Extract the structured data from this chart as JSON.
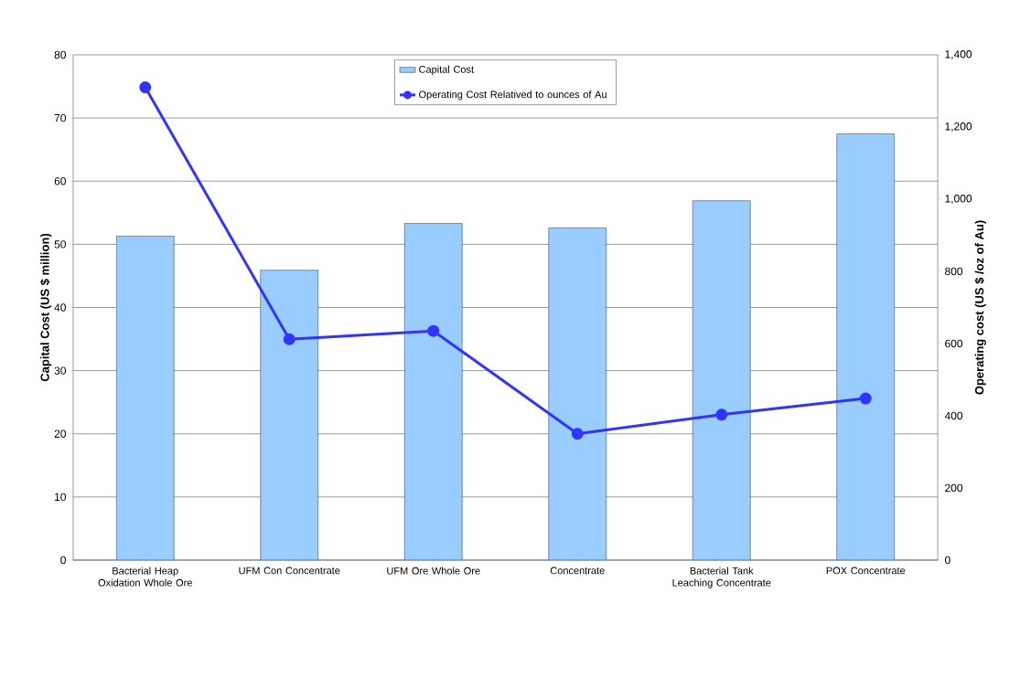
{
  "chart_data": {
    "type": "bar",
    "categories": [
      "Bacterial Heap Oxidation Whole Ore",
      "UFM Con Concentrate",
      "UFM Ore Whole Ore",
      "Concentrate",
      "Bacterial Tank Leaching Concentrate",
      "POX  Concentrate"
    ],
    "series": [
      {
        "name": "Capital Cost",
        "color": "#99ccff",
        "values": [
          51.3,
          45.9,
          53.3,
          52.6,
          56.9,
          67.5
        ]
      },
      {
        "name": "Operating Cost Relatived to ounces of Au",
        "type": "line",
        "axis": "y2",
        "color": "#3333ff",
        "marker": "circle",
        "values": [
          1310,
          612,
          635,
          350,
          403,
          448
        ]
      }
    ],
    "ylabel": "Capital Cost (US $ million)",
    "y2label": "Operating cost (US $ /oz  of Au)",
    "ylim": [
      0,
      80
    ],
    "yticks": [
      0,
      10,
      20,
      30,
      40,
      50,
      60,
      70,
      80
    ],
    "y2lim": [
      0,
      1400
    ],
    "y2ticks": [
      0,
      200,
      400,
      600,
      800,
      {
        "value": 1000,
        "label": "1,000"
      },
      {
        "value": 1200,
        "label": "1,200"
      },
      {
        "value": 1400,
        "label": "1,400"
      }
    ],
    "grid": "y",
    "legend": "top"
  }
}
